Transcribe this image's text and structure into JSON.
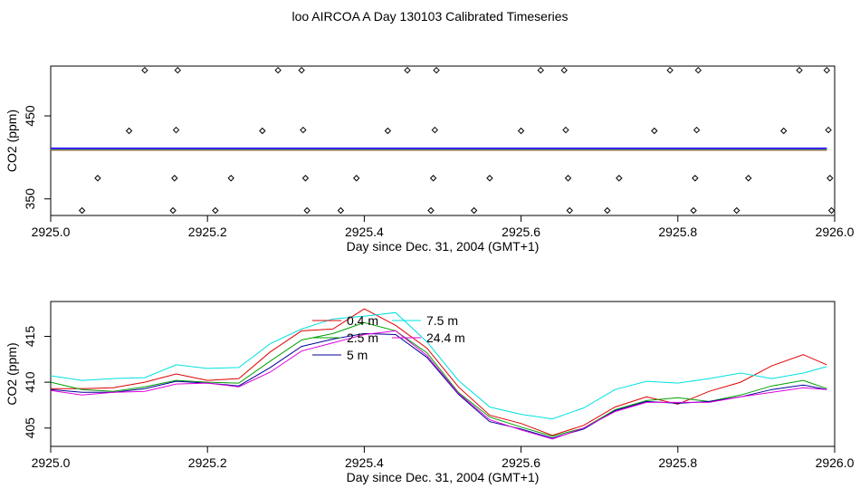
{
  "title": "loo AIRCOA A  Day 130103  Calibrated Timeseries",
  "chart_data": [
    {
      "type": "scatter",
      "xlabel": "Day since Dec. 31, 2004 (GMT+1)",
      "ylabel": "CO2 (ppm)",
      "xlim": [
        2925.0,
        2926.0
      ],
      "ylim": [
        330,
        510
      ],
      "x_ticks": [
        "2925.0",
        "2925.2",
        "2925.4",
        "2925.6",
        "2925.8",
        "2926.0"
      ],
      "y_ticks": [
        "350",
        "450"
      ],
      "y_tick_values": [
        350,
        450
      ],
      "grid": false,
      "flat_line_value": 410,
      "points": [
        {
          "x": 2925.04,
          "y": 336
        },
        {
          "x": 2925.06,
          "y": 375
        },
        {
          "x": 2925.1,
          "y": 432
        },
        {
          "x": 2925.12,
          "y": 505
        },
        {
          "x": 2925.156,
          "y": 336
        },
        {
          "x": 2925.158,
          "y": 375
        },
        {
          "x": 2925.16,
          "y": 433
        },
        {
          "x": 2925.162,
          "y": 505
        },
        {
          "x": 2925.21,
          "y": 336
        },
        {
          "x": 2925.23,
          "y": 375
        },
        {
          "x": 2925.27,
          "y": 432
        },
        {
          "x": 2925.29,
          "y": 505
        },
        {
          "x": 2925.32,
          "y": 505
        },
        {
          "x": 2925.322,
          "y": 433
        },
        {
          "x": 2925.325,
          "y": 375
        },
        {
          "x": 2925.327,
          "y": 336
        },
        {
          "x": 2925.37,
          "y": 336
        },
        {
          "x": 2925.39,
          "y": 375
        },
        {
          "x": 2925.43,
          "y": 432
        },
        {
          "x": 2925.455,
          "y": 505
        },
        {
          "x": 2925.485,
          "y": 336
        },
        {
          "x": 2925.488,
          "y": 375
        },
        {
          "x": 2925.49,
          "y": 433
        },
        {
          "x": 2925.492,
          "y": 505
        },
        {
          "x": 2925.54,
          "y": 336
        },
        {
          "x": 2925.56,
          "y": 375
        },
        {
          "x": 2925.6,
          "y": 432
        },
        {
          "x": 2925.625,
          "y": 505
        },
        {
          "x": 2925.655,
          "y": 505
        },
        {
          "x": 2925.657,
          "y": 433
        },
        {
          "x": 2925.66,
          "y": 375
        },
        {
          "x": 2925.662,
          "y": 336
        },
        {
          "x": 2925.71,
          "y": 336
        },
        {
          "x": 2925.725,
          "y": 375
        },
        {
          "x": 2925.77,
          "y": 432
        },
        {
          "x": 2925.79,
          "y": 505
        },
        {
          "x": 2925.82,
          "y": 336
        },
        {
          "x": 2925.822,
          "y": 375
        },
        {
          "x": 2925.824,
          "y": 433
        },
        {
          "x": 2925.826,
          "y": 505
        },
        {
          "x": 2925.875,
          "y": 336
        },
        {
          "x": 2925.89,
          "y": 375
        },
        {
          "x": 2925.935,
          "y": 432
        },
        {
          "x": 2925.955,
          "y": 505
        },
        {
          "x": 2925.99,
          "y": 505
        },
        {
          "x": 2925.992,
          "y": 433
        },
        {
          "x": 2925.994,
          "y": 375
        },
        {
          "x": 2925.996,
          "y": 336
        }
      ]
    },
    {
      "type": "line",
      "xlabel": "Day since Dec. 31, 2004 (GMT+1)",
      "ylabel": "CO2 (ppm)",
      "xlim": [
        2925.0,
        2926.0
      ],
      "ylim": [
        403,
        418.8
      ],
      "x_ticks": [
        "2925.0",
        "2925.2",
        "2925.4",
        "2925.6",
        "2925.8",
        "2926.0"
      ],
      "y_ticks": [
        "405",
        "410",
        "415"
      ],
      "y_tick_values": [
        405,
        410,
        415
      ],
      "grid": false,
      "legend_position": "top-center",
      "x": [
        2925.0,
        2925.04,
        2925.08,
        2925.12,
        2925.16,
        2925.2,
        2925.24,
        2925.28,
        2925.32,
        2925.36,
        2925.4,
        2925.44,
        2925.48,
        2925.52,
        2925.56,
        2925.6,
        2925.64,
        2925.68,
        2925.72,
        2925.76,
        2925.8,
        2925.84,
        2925.88,
        2925.92,
        2925.96,
        2925.99
      ],
      "series": [
        {
          "name": "0.4 m",
          "color": "#e00000",
          "values": [
            409.3,
            409.3,
            409.4,
            410.0,
            410.9,
            410.2,
            410.4,
            413.3,
            415.6,
            415.8,
            418.0,
            416.2,
            413.7,
            409.5,
            406.4,
            405.5,
            404.2,
            405.3,
            407.3,
            408.4,
            407.6,
            409.0,
            410.0,
            411.8,
            413.0,
            411.9
          ]
        },
        {
          "name": "2.5 m",
          "color": "#00a000",
          "values": [
            410.0,
            409.2,
            409.0,
            409.5,
            410.2,
            410.0,
            409.9,
            412.3,
            414.6,
            415.3,
            416.5,
            415.6,
            413.2,
            408.9,
            406.2,
            405.1,
            404.1,
            405.0,
            407.0,
            408.0,
            408.3,
            407.9,
            408.6,
            409.6,
            410.2,
            409.3
          ]
        },
        {
          "name": "7.5 m",
          "color": "#00e0e0",
          "values": [
            410.7,
            410.2,
            410.4,
            410.5,
            411.9,
            411.5,
            411.6,
            414.2,
            415.8,
            416.9,
            417.2,
            417.6,
            414.4,
            410.2,
            407.3,
            406.5,
            406.0,
            407.2,
            409.2,
            410.1,
            409.9,
            410.4,
            411.0,
            410.4,
            411.0,
            411.7
          ]
        },
        {
          "name": "5 m",
          "color": "#000099",
          "values": [
            409.2,
            408.9,
            408.9,
            409.3,
            410.1,
            409.9,
            409.6,
            411.6,
            413.9,
            414.7,
            415.3,
            415.2,
            412.7,
            408.7,
            405.7,
            404.9,
            403.9,
            404.9,
            406.9,
            407.9,
            407.7,
            407.9,
            408.4,
            409.2,
            409.7,
            409.2
          ]
        },
        {
          "name": "24.4 m",
          "color": "#e000e0",
          "values": [
            409.1,
            408.6,
            408.9,
            409.0,
            409.8,
            409.9,
            409.5,
            411.1,
            413.4,
            414.3,
            415.2,
            415.6,
            412.9,
            408.8,
            405.9,
            404.8,
            403.8,
            405.0,
            406.8,
            407.8,
            407.8,
            407.8,
            408.4,
            408.9,
            409.4,
            409.2
          ]
        }
      ],
      "legend": [
        {
          "name": "0.4 m",
          "color": "#e00000"
        },
        {
          "name": "2.5 m",
          "color": "#00a000"
        },
        {
          "name": "5 m",
          "color": "#000099"
        },
        {
          "name": "7.5 m",
          "color": "#00e0e0"
        },
        {
          "name": "24.4 m",
          "color": "#e000e0"
        }
      ]
    }
  ]
}
